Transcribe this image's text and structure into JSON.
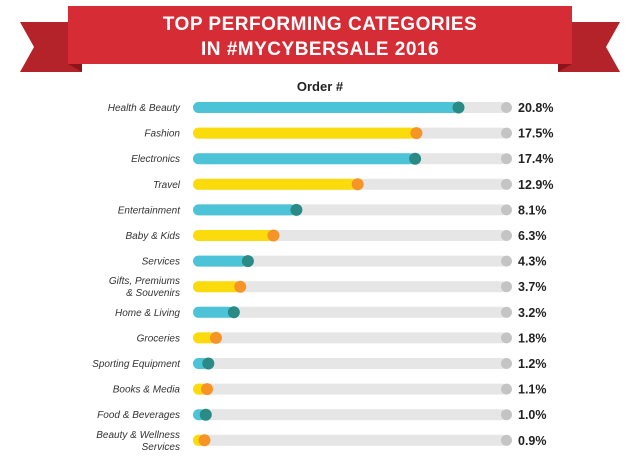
{
  "chart_data": {
    "type": "bar",
    "title": [
      "TOP PERFORMING CATEGORIES",
      "IN #MYCYBERSALE 2016"
    ],
    "series_label": "Order #",
    "categories": [
      [
        "Health & Beauty"
      ],
      [
        "Fashion"
      ],
      [
        "Electronics"
      ],
      [
        "Travel"
      ],
      [
        "Entertainment"
      ],
      [
        "Baby & Kids"
      ],
      [
        "Services"
      ],
      [
        "Gifts, Premiums",
        "& Souvenirs"
      ],
      [
        "Home & Living"
      ],
      [
        "Groceries"
      ],
      [
        "Sporting Equipment"
      ],
      [
        "Books & Media"
      ],
      [
        "Food & Beverages"
      ],
      [
        "Beauty & Wellness",
        "Services"
      ]
    ],
    "values": [
      20.8,
      17.5,
      17.4,
      12.9,
      8.1,
      6.3,
      4.3,
      3.7,
      3.2,
      1.8,
      1.2,
      1.1,
      1.0,
      0.9
    ],
    "value_labels": [
      "20.8%",
      "17.5%",
      "17.4%",
      "12.9%",
      "8.1%",
      "6.3%",
      "4.3%",
      "3.7%",
      "3.2%",
      "1.8%",
      "1.2%",
      "1.1%",
      "1.0%",
      "0.9%"
    ],
    "xlim": [
      0,
      24.6
    ],
    "colors": {
      "banner": "#d62c35",
      "banner_fold": "#9e1b22",
      "track": "#e6e6e6",
      "track_end": "#c4c4c4",
      "bar_blue": "#4dc3d7",
      "dot_blue": "#2a8a86",
      "bar_yellow": "#fbdb0b",
      "dot_orange": "#f79426"
    }
  }
}
